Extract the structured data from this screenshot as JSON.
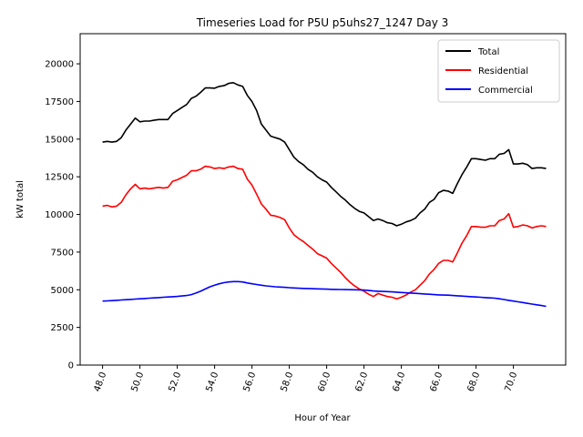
{
  "chart_data": {
    "type": "line",
    "title": "Timeseries Load for P5U p5uhs27_1247  Day 3",
    "xlabel": "Hour of Year",
    "ylabel": "kW total",
    "xlim": [
      46.8,
      72.8
    ],
    "ylim": [
      0,
      22000
    ],
    "xticks": [
      48,
      50,
      52,
      54,
      56,
      58,
      60,
      62,
      64,
      66,
      68,
      70
    ],
    "xtick_labels": [
      "48.0",
      "50.0",
      "52.0",
      "54.0",
      "56.0",
      "58.0",
      "60.0",
      "62.0",
      "64.0",
      "66.0",
      "68.0",
      "70.0"
    ],
    "yticks": [
      0,
      2500,
      5000,
      7500,
      10000,
      12500,
      15000,
      17500,
      20000
    ],
    "ytick_labels": [
      "0",
      "2500",
      "5000",
      "7500",
      "10000",
      "12500",
      "15000",
      "17500",
      "20000"
    ],
    "legend_position": "top-right",
    "x": [
      48.0,
      48.25,
      48.5,
      48.75,
      49.0,
      49.25,
      49.5,
      49.75,
      50.0,
      50.25,
      50.5,
      50.75,
      51.0,
      51.25,
      51.5,
      51.75,
      52.0,
      52.25,
      52.5,
      52.75,
      53.0,
      53.25,
      53.5,
      53.75,
      54.0,
      54.25,
      54.5,
      54.75,
      55.0,
      55.25,
      55.5,
      55.75,
      56.0,
      56.25,
      56.5,
      56.75,
      57.0,
      57.25,
      57.5,
      57.75,
      58.0,
      58.25,
      58.5,
      58.75,
      59.0,
      59.25,
      59.5,
      59.75,
      60.0,
      60.25,
      60.5,
      60.75,
      61.0,
      61.25,
      61.5,
      61.75,
      62.0,
      62.25,
      62.5,
      62.75,
      63.0,
      63.25,
      63.5,
      63.75,
      64.0,
      64.25,
      64.5,
      64.75,
      65.0,
      65.25,
      65.5,
      65.75,
      66.0,
      66.25,
      66.5,
      66.75,
      67.0,
      67.25,
      67.5,
      67.75,
      68.0,
      68.25,
      68.5,
      68.75,
      69.0,
      69.25,
      69.5,
      69.75,
      70.0,
      70.25,
      70.5,
      70.75,
      71.0,
      71.25,
      71.5,
      71.75
    ],
    "series": [
      {
        "name": "Total",
        "color": "#000000",
        "values": [
          14800,
          14850,
          14800,
          14850,
          15100,
          15600,
          16000,
          16400,
          16150,
          16200,
          16200,
          16250,
          16300,
          16300,
          16300,
          16700,
          16900,
          17100,
          17300,
          17700,
          17850,
          18100,
          18400,
          18400,
          18380,
          18500,
          18550,
          18700,
          18750,
          18600,
          18500,
          17900,
          17500,
          16900,
          16000,
          15600,
          15200,
          15100,
          15000,
          14800,
          14300,
          13800,
          13500,
          13300,
          13000,
          12800,
          12500,
          12300,
          12150,
          11800,
          11500,
          11200,
          10950,
          10650,
          10400,
          10200,
          10100,
          9850,
          9600,
          9700,
          9600,
          9450,
          9400,
          9250,
          9350,
          9500,
          9600,
          9750,
          10100,
          10350,
          10800,
          11000,
          11450,
          11600,
          11550,
          11400,
          12050,
          12650,
          13150,
          13700,
          13700,
          13650,
          13600,
          13700,
          13700,
          14000,
          14050,
          14300,
          13350,
          13350,
          13400,
          13300,
          13050,
          13100,
          13100,
          13050
        ]
      },
      {
        "name": "Residential",
        "color": "#ff0000",
        "values": [
          10550,
          10600,
          10500,
          10550,
          10800,
          11300,
          11700,
          12000,
          11700,
          11750,
          11700,
          11750,
          11800,
          11750,
          11800,
          12200,
          12300,
          12450,
          12600,
          12900,
          12900,
          13000,
          13200,
          13150,
          13050,
          13100,
          13050,
          13150,
          13200,
          13050,
          13000,
          12350,
          11950,
          11350,
          10700,
          10350,
          9950,
          9900,
          9800,
          9650,
          9100,
          8650,
          8400,
          8200,
          7950,
          7700,
          7400,
          7250,
          7100,
          6750,
          6450,
          6150,
          5800,
          5500,
          5250,
          5050,
          4900,
          4700,
          4550,
          4750,
          4650,
          4550,
          4500,
          4400,
          4500,
          4650,
          4850,
          5000,
          5300,
          5600,
          6050,
          6350,
          6750,
          6950,
          6950,
          6850,
          7450,
          8100,
          8600,
          9200,
          9200,
          9150,
          9150,
          9250,
          9250,
          9600,
          9700,
          10050,
          9150,
          9200,
          9300,
          9250,
          9100,
          9200,
          9250,
          9200
        ]
      },
      {
        "name": "Commercial",
        "color": "#0000ff",
        "values": [
          4250,
          4260,
          4280,
          4300,
          4320,
          4340,
          4360,
          4380,
          4400,
          4420,
          4440,
          4460,
          4480,
          4500,
          4520,
          4540,
          4560,
          4590,
          4620,
          4680,
          4780,
          4900,
          5050,
          5200,
          5300,
          5400,
          5470,
          5520,
          5540,
          5540,
          5520,
          5450,
          5400,
          5350,
          5300,
          5260,
          5230,
          5200,
          5180,
          5160,
          5140,
          5120,
          5100,
          5090,
          5080,
          5070,
          5060,
          5050,
          5040,
          5030,
          5020,
          5015,
          5010,
          5005,
          5000,
          4990,
          4980,
          4950,
          4920,
          4900,
          4890,
          4880,
          4860,
          4840,
          4820,
          4800,
          4780,
          4760,
          4740,
          4720,
          4700,
          4680,
          4660,
          4650,
          4640,
          4620,
          4600,
          4580,
          4560,
          4540,
          4520,
          4500,
          4480,
          4460,
          4440,
          4400,
          4350,
          4300,
          4250,
          4200,
          4150,
          4100,
          4050,
          4000,
          3950,
          3900
        ]
      }
    ]
  }
}
